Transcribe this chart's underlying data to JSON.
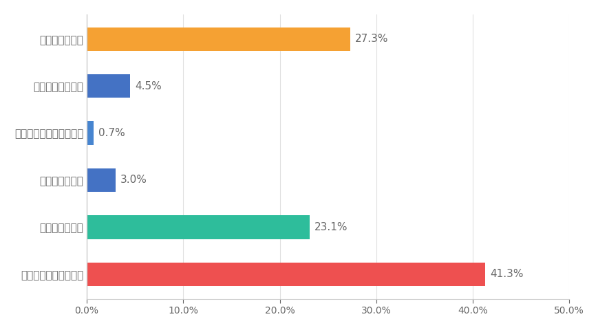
{
  "categories": [
    "自分の心の平和",
    "自分の家族の平和",
    "自分の学校や地域の平和",
    "自分の国の平和",
    "世界人類の平和",
    "自然を含む地球の平和"
  ],
  "values": [
    27.3,
    4.5,
    0.7,
    3.0,
    23.1,
    41.3
  ],
  "bar_colors": [
    "#F5A133",
    "#4472C4",
    "#4785D0",
    "#4472C4",
    "#2EBD9B",
    "#EE5050"
  ],
  "label_texts": [
    "27.3%",
    "4.5%",
    "0.7%",
    "3.0%",
    "23.1%",
    "41.3%"
  ],
  "xlim": [
    0,
    50
  ],
  "xtick_values": [
    0,
    10,
    20,
    30,
    40,
    50
  ],
  "xtick_labels": [
    "0.0%",
    "10.0%",
    "20.0%",
    "30.0%",
    "40.0%",
    "50.0%"
  ],
  "background_color": "#ffffff",
  "bar_height": 0.5,
  "label_fontsize": 11,
  "tick_fontsize": 10,
  "yticklabel_fontsize": 11,
  "text_color": "#666666"
}
